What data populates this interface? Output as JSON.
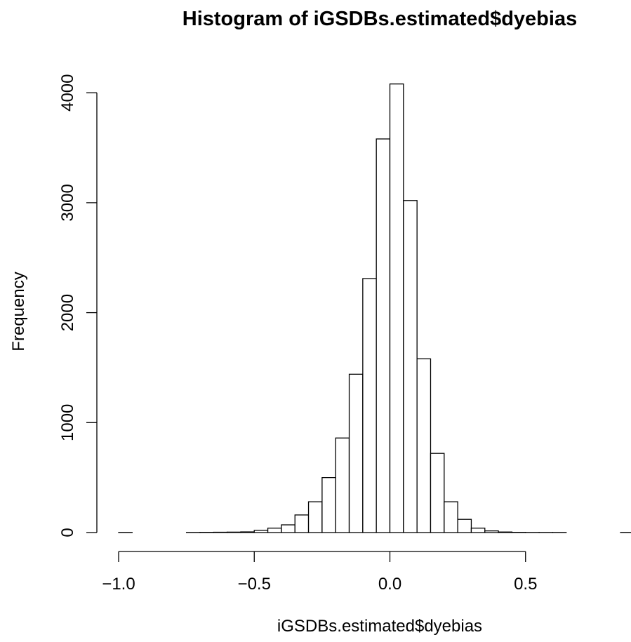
{
  "chart_data": {
    "type": "bar",
    "title": "Histogram of iGSDBs.estimated$dyebias",
    "xlabel": "iGSDBs.estimated$dyebias",
    "ylabel": "Frequency",
    "bin_width": 0.05,
    "bin_start": -1.0,
    "values": [
      1,
      0,
      0,
      0,
      0,
      1,
      2,
      3,
      4,
      6,
      20,
      40,
      70,
      160,
      280,
      500,
      860,
      1440,
      2310,
      3580,
      4080,
      3020,
      1580,
      720,
      280,
      120,
      40,
      15,
      5,
      2,
      1,
      1,
      1,
      0,
      0,
      0,
      0,
      1
    ],
    "xlim": [
      -1.0,
      0.9
    ],
    "ylim": [
      0,
      4080
    ],
    "x_ticks": [
      -1.0,
      -0.5,
      0.0,
      0.5
    ],
    "x_tick_labels": [
      "−1.0",
      "−0.5",
      "0.0",
      "0.5"
    ],
    "y_ticks": [
      0,
      1000,
      2000,
      3000,
      4000
    ],
    "y_tick_labels": [
      "0",
      "1000",
      "2000",
      "3000",
      "4000"
    ]
  }
}
